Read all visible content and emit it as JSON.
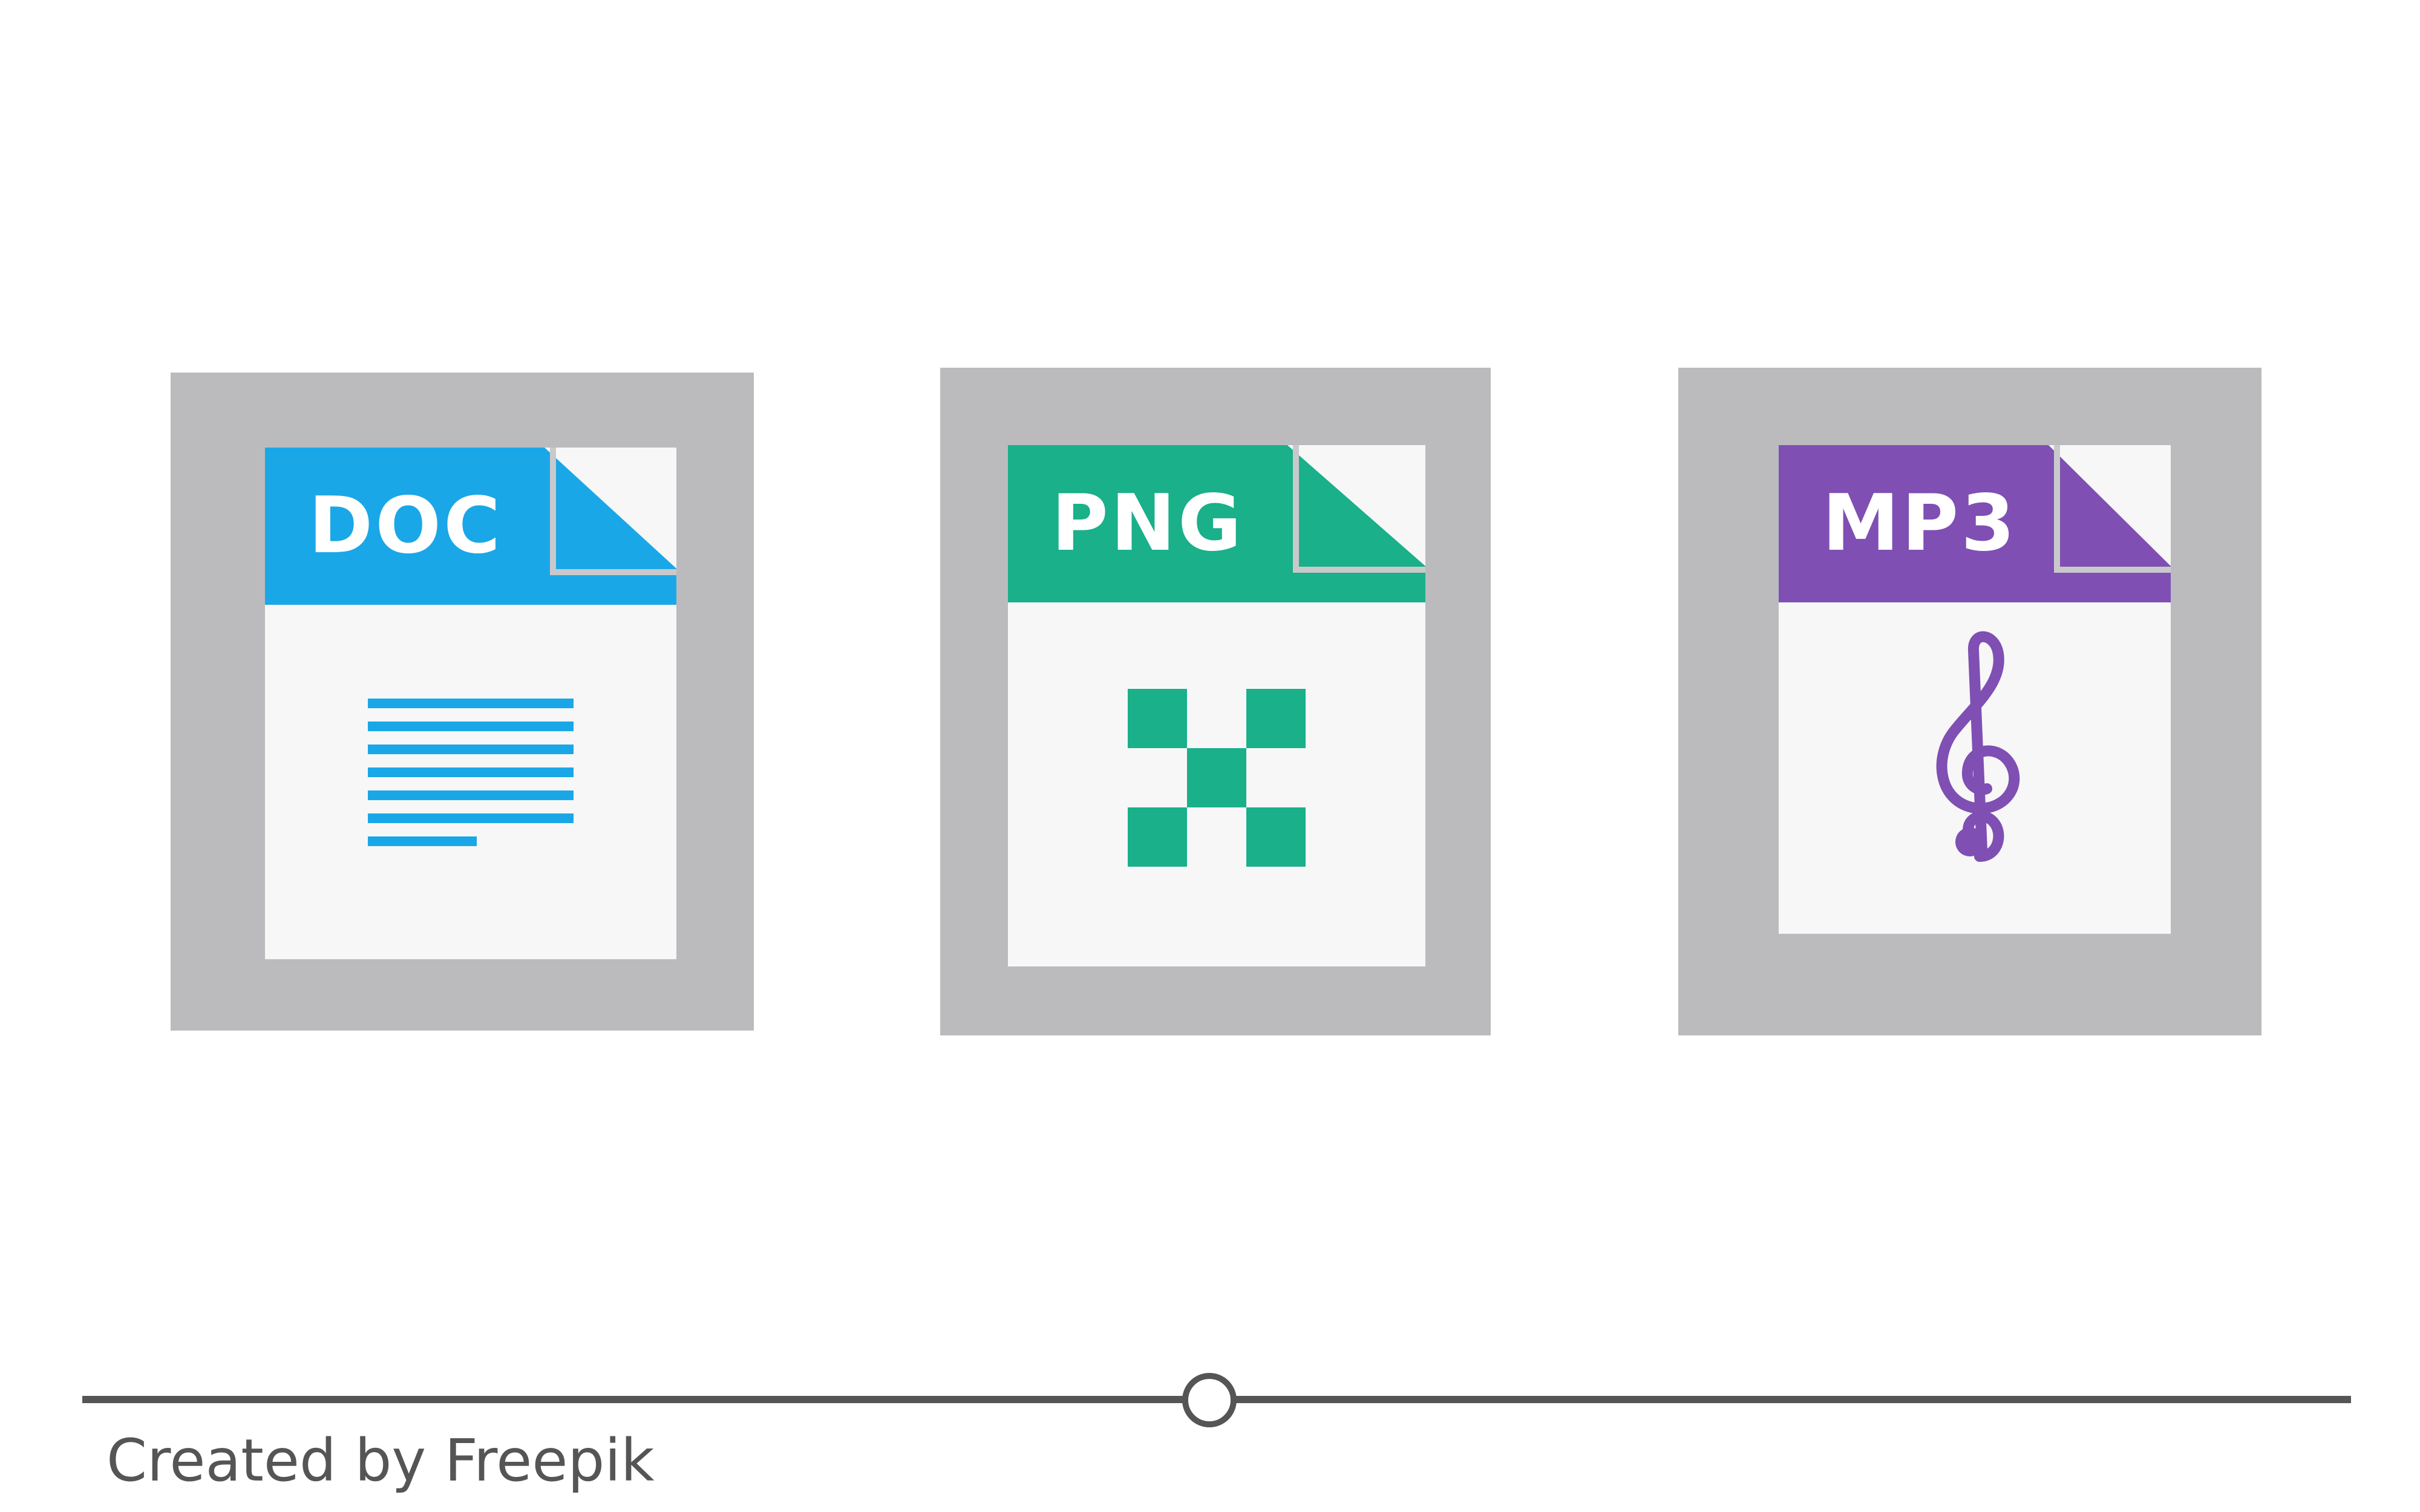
{
  "files": [
    {
      "id": "doc",
      "label": "DOC",
      "color": "#1aa7e8",
      "icon": "text-lines-icon"
    },
    {
      "id": "png",
      "label": "PNG",
      "color": "#19b08a",
      "icon": "checkerboard-icon"
    },
    {
      "id": "mp3",
      "label": "MP3",
      "color": "#7f4fb3",
      "icon": "treble-clef-icon"
    }
  ],
  "colors": {
    "tile_background": "#bbbbbe",
    "sheet_background": "#f7f7f7",
    "footer_gray": "#555555"
  },
  "footer": {
    "credit": "Created by Freepik"
  }
}
